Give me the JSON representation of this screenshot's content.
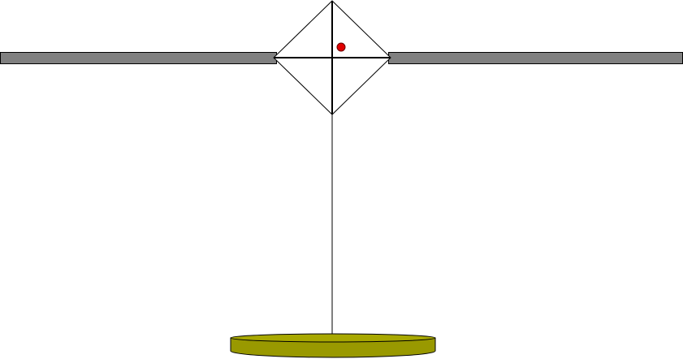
{
  "diagram": {
    "kind": "balance-beam-with-hanging-pan",
    "colors": {
      "background": "#ffffff",
      "beam_fill": "#808080",
      "outline": "#000000",
      "pivot_fill": "#ffffff",
      "indicator_dot": "#e00000",
      "pan_fill": "#999900",
      "pan_top": "#a8a800"
    },
    "elements": [
      {
        "name": "beam-left-arm",
        "shape": "bar"
      },
      {
        "name": "beam-right-arm",
        "shape": "bar"
      },
      {
        "name": "pivot-diamond",
        "shape": "diamond"
      },
      {
        "name": "pivot-crosshair",
        "shape": "cross"
      },
      {
        "name": "indicator-dot",
        "shape": "circle"
      },
      {
        "name": "hanging-string",
        "shape": "line"
      },
      {
        "name": "weighing-pan",
        "shape": "disc"
      }
    ]
  }
}
